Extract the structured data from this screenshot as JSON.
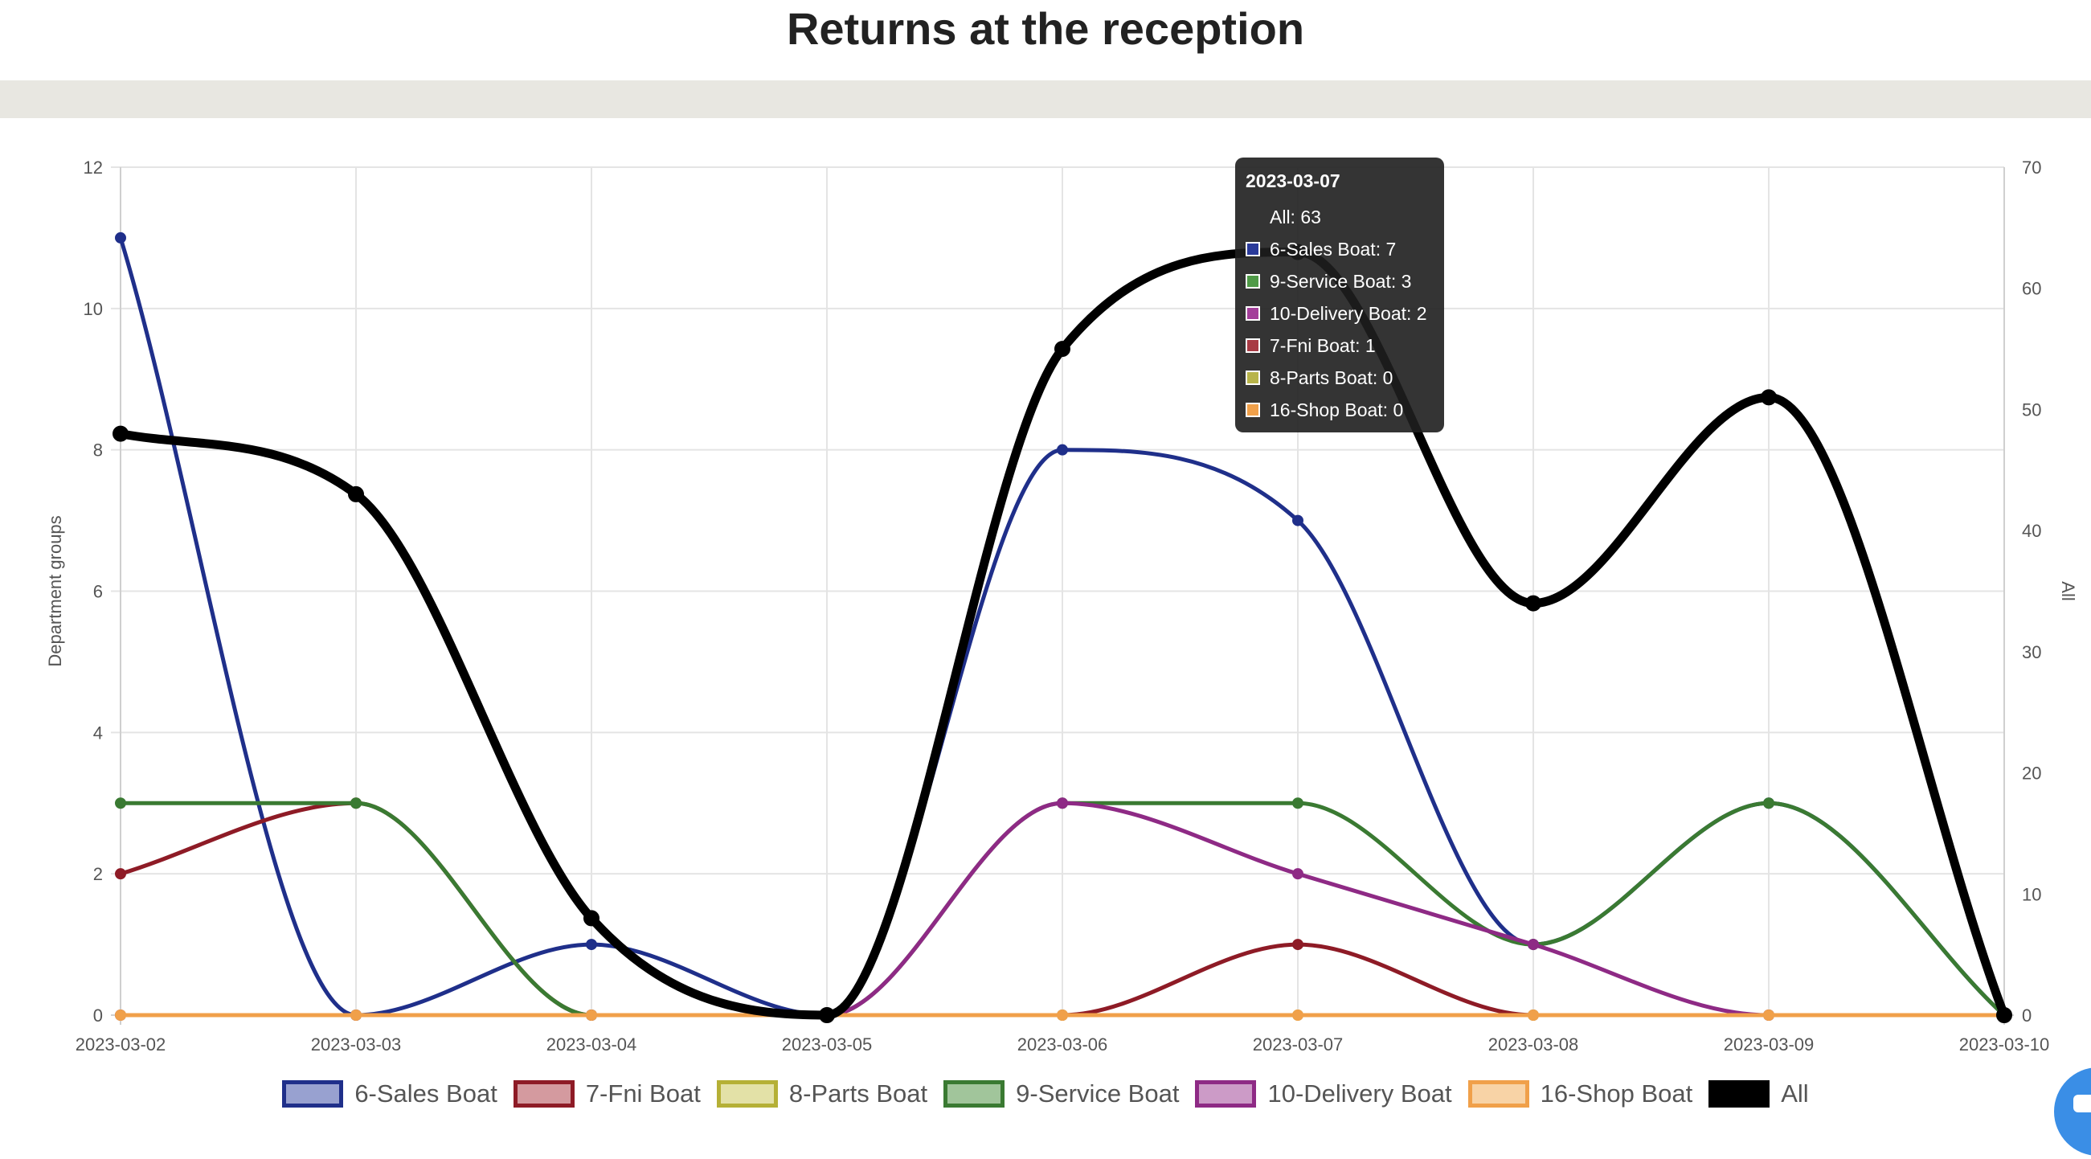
{
  "page": {
    "title": "Returns at the reception"
  },
  "chart_data": {
    "type": "line",
    "title": "Returns at the reception",
    "categories": [
      "2023-03-02",
      "2023-03-03",
      "2023-03-04",
      "2023-03-05",
      "2023-03-06",
      "2023-03-07",
      "2023-03-08",
      "2023-03-09",
      "2023-03-10"
    ],
    "y_left": {
      "label": "Department groups",
      "range": [
        0,
        12
      ],
      "ticks": [
        0,
        2,
        4,
        6,
        8,
        10,
        12
      ]
    },
    "y_right": {
      "label": "All",
      "range": [
        0,
        70
      ],
      "ticks": [
        0,
        10,
        20,
        30,
        40,
        50,
        60,
        70
      ]
    },
    "grid": true,
    "legend_position": "bottom",
    "series": [
      {
        "name": "6-Sales Boat",
        "axis": "left",
        "color": "#1f2f8a",
        "fill": "#98a1d0",
        "values": [
          11,
          0,
          1,
          0,
          8,
          7,
          1,
          3,
          0
        ]
      },
      {
        "name": "7-Fni Boat",
        "axis": "left",
        "color": "#8e1b26",
        "fill": "#d49a9f",
        "values": [
          2,
          3,
          0,
          0,
          0,
          1,
          0,
          0,
          0
        ]
      },
      {
        "name": "8-Parts Boat",
        "axis": "left",
        "color": "#b5b036",
        "fill": "#e3e1a7",
        "values": [
          0,
          0,
          0,
          0,
          0,
          0,
          0,
          0,
          0
        ]
      },
      {
        "name": "9-Service Boat",
        "axis": "left",
        "color": "#3a7a32",
        "fill": "#a1c59b",
        "values": [
          3,
          3,
          0,
          0,
          3,
          3,
          1,
          3,
          0
        ]
      },
      {
        "name": "10-Delivery Boat",
        "axis": "left",
        "color": "#8e2a85",
        "fill": "#cc9bc7",
        "values": [
          0,
          0,
          0,
          0,
          3,
          2,
          1,
          0,
          0
        ]
      },
      {
        "name": "16-Shop Boat",
        "axis": "left",
        "color": "#f0a04a",
        "fill": "#f8d3a6",
        "values": [
          0,
          0,
          0,
          0,
          0,
          0,
          0,
          0,
          0
        ]
      },
      {
        "name": "All",
        "axis": "right",
        "color": "#000000",
        "fill": "#000000",
        "values": [
          48,
          43,
          8,
          0,
          55,
          63,
          34,
          51,
          0
        ]
      }
    ]
  },
  "tooltip": {
    "title": "2023-03-07",
    "rows": [
      {
        "text": "All: 63",
        "color": ""
      },
      {
        "text": "6-Sales Boat: 7",
        "color": "#2a3a9a"
      },
      {
        "text": "9-Service Boat: 3",
        "color": "#4f9a47"
      },
      {
        "text": "10-Delivery Boat: 2",
        "color": "#a33e9a"
      },
      {
        "text": "7-Fni Boat: 1",
        "color": "#a83a44"
      },
      {
        "text": "8-Parts Boat: 0",
        "color": "#b8b44a"
      },
      {
        "text": "16-Shop Boat: 0",
        "color": "#f0a04a"
      }
    ]
  },
  "chat": {
    "icon": "chat-bubble-icon"
  }
}
